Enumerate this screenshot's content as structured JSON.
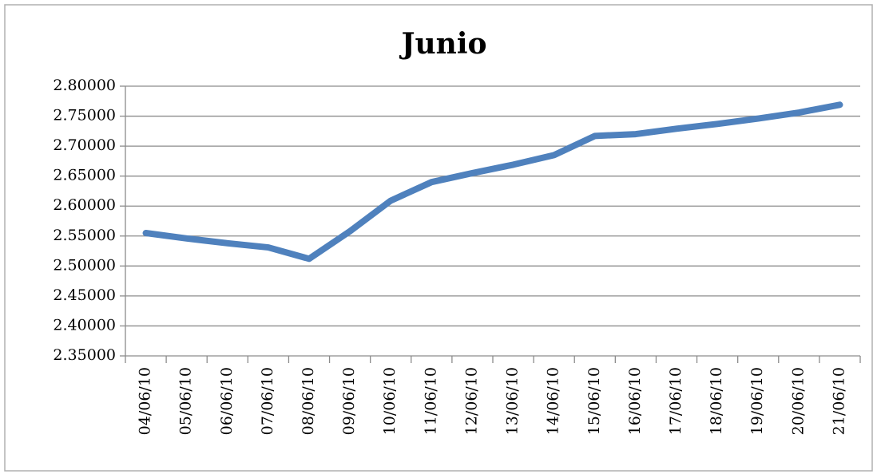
{
  "chart_data": {
    "type": "line",
    "title": "Junio",
    "categories": [
      "04/06/10",
      "05/06/10",
      "06/06/10",
      "07/06/10",
      "08/06/10",
      "09/06/10",
      "10/06/10",
      "11/06/10",
      "12/06/10",
      "13/06/10",
      "14/06/10",
      "15/06/10",
      "16/06/10",
      "17/06/10",
      "18/06/10",
      "19/06/10",
      "20/06/10",
      "21/06/10"
    ],
    "series": [
      {
        "name": "Junio",
        "color": "#4f81bd",
        "values": [
          2.555,
          2.546,
          2.538,
          2.531,
          2.512,
          2.558,
          2.609,
          2.64,
          2.655,
          2.669,
          2.685,
          2.717,
          2.72,
          2.729,
          2.737,
          2.746,
          2.756,
          2.769
        ]
      }
    ],
    "ylim": [
      2.35,
      2.8
    ],
    "yticks": [
      {
        "value": 2.35,
        "label": "2.35000"
      },
      {
        "value": 2.4,
        "label": "2.40000"
      },
      {
        "value": 2.45,
        "label": "2.45000"
      },
      {
        "value": 2.5,
        "label": "2.50000"
      },
      {
        "value": 2.55,
        "label": "2.55000"
      },
      {
        "value": 2.6,
        "label": "2.60000"
      },
      {
        "value": 2.65,
        "label": "2.65000"
      },
      {
        "value": 2.7,
        "label": "2.70000"
      },
      {
        "value": 2.75,
        "label": "2.75000"
      },
      {
        "value": 2.8,
        "label": "2.80000"
      }
    ],
    "grid": true
  }
}
